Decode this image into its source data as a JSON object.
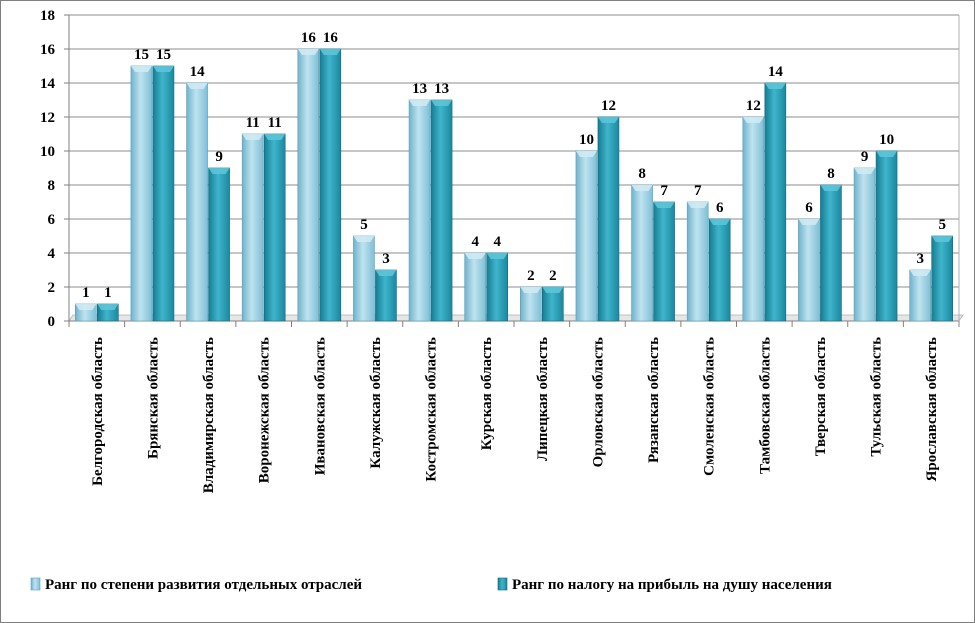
{
  "chart_data": {
    "type": "bar",
    "categories": [
      "Белгородская область",
      "Брянская область",
      "Владимирская область",
      "Воронежская область",
      "Ивановская область",
      "Калужская область",
      "Костромская область",
      "Курская область",
      "Липецкая область",
      "Орловская область",
      "Рязанская область",
      "Смоленская область",
      "Тамбовская область",
      "Тверская область",
      "Тульская область",
      "Ярославская область"
    ],
    "series": [
      {
        "name": "Ранг по степени развития отдельных отраслей",
        "values": [
          1,
          15,
          14,
          11,
          16,
          5,
          13,
          4,
          2,
          10,
          8,
          7,
          12,
          6,
          9,
          3
        ],
        "color": "#9fd0e2"
      },
      {
        "name": "Ранг по налогу на прибыль на душу населения",
        "values": [
          1,
          15,
          9,
          11,
          16,
          3,
          13,
          4,
          2,
          12,
          7,
          6,
          14,
          8,
          10,
          5
        ],
        "color": "#2b9cb3"
      }
    ],
    "data_labels": [
      [
        "1",
        "1"
      ],
      [
        "15",
        "15"
      ],
      [
        "14",
        "9"
      ],
      [
        "11",
        "11"
      ],
      [
        "16",
        "16"
      ],
      [
        "5",
        "3"
      ],
      [
        "13",
        "13"
      ],
      [
        "4",
        "4"
      ],
      [
        "2",
        "2"
      ],
      [
        "10",
        "12"
      ],
      [
        "8",
        "7"
      ],
      [
        "7",
        "6"
      ],
      [
        "12",
        "14"
      ],
      [
        "6",
        "8"
      ],
      [
        "9",
        "10"
      ],
      [
        "3",
        "5"
      ]
    ],
    "y_ticks": [
      "0",
      "2",
      "4",
      "6",
      "8",
      "10",
      "12",
      "14",
      "16",
      "18"
    ],
    "ylim": [
      0,
      18
    ],
    "grid": true,
    "legend_position": "bottom",
    "title": "",
    "xlabel": "",
    "ylabel": ""
  }
}
